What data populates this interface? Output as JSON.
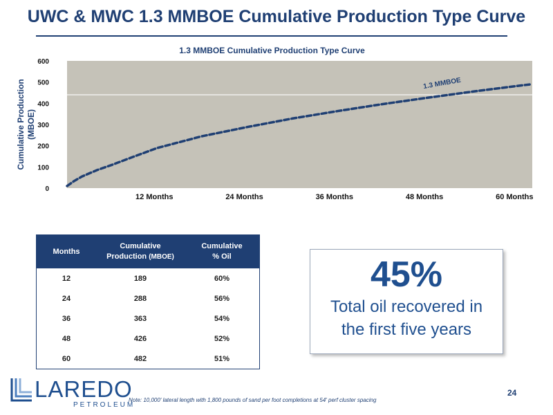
{
  "slide": {
    "title": "UWC & MWC 1.3 MMBOE Cumulative Production Type Curve",
    "page_number": "24",
    "footnote": "Note: 10,000' lateral length with 1,800 pounds of sand per foot completions at 54' perf cluster spacing"
  },
  "chart_data": {
    "type": "line",
    "title": "1.3 MMBOE Cumulative Production Type Curve",
    "ylabel_lines": [
      "Cumulative Production",
      "(MBOE)"
    ],
    "xlabel": "",
    "ylim": [
      0,
      600
    ],
    "yticks": [
      0,
      100,
      200,
      300,
      400,
      500,
      600
    ],
    "xlim": [
      0,
      62
    ],
    "xticks": [
      {
        "label": "12 Months",
        "value": 12
      },
      {
        "label": "24 Months",
        "value": 24
      },
      {
        "label": "36 Months",
        "value": 36
      },
      {
        "label": "48 Months",
        "value": 48
      },
      {
        "label": "60 Months",
        "value": 60
      }
    ],
    "grid": false,
    "reference_line": {
      "y": 440
    },
    "annotation": "1.3 MMBOE",
    "colors": {
      "plot_bg": "#c5c2b8",
      "line": "#1f3f73",
      "reference": "#ffffff",
      "axis_text": "#1f3f73"
    },
    "series": [
      {
        "x": [
          0,
          1,
          2,
          4,
          6,
          9,
          12,
          18,
          24,
          30,
          36,
          42,
          48,
          54,
          60,
          62
        ],
        "y": [
          10,
          35,
          55,
          85,
          110,
          150,
          189,
          245,
          288,
          328,
          363,
          396,
          426,
          455,
          482,
          490
        ]
      }
    ]
  },
  "table": {
    "headers": [
      {
        "line1": "Months",
        "line2": "",
        "suffix": ""
      },
      {
        "line1": "Cumulative",
        "line2": "Production",
        "suffix": "(MBOE)"
      },
      {
        "line1": "Cumulative",
        "line2": "% Oil",
        "suffix": ""
      }
    ],
    "rows": [
      [
        "12",
        "189",
        "60%"
      ],
      [
        "24",
        "288",
        "56%"
      ],
      [
        "36",
        "363",
        "54%"
      ],
      [
        "48",
        "426",
        "52%"
      ],
      [
        "60",
        "482",
        "51%"
      ]
    ]
  },
  "callout": {
    "big": "45%",
    "line1": "Total oil recovered in",
    "line2": "the first five years"
  },
  "logo": {
    "word": "LAREDO",
    "sub": "PETROLEUM",
    "color": "#1f4f8f"
  }
}
